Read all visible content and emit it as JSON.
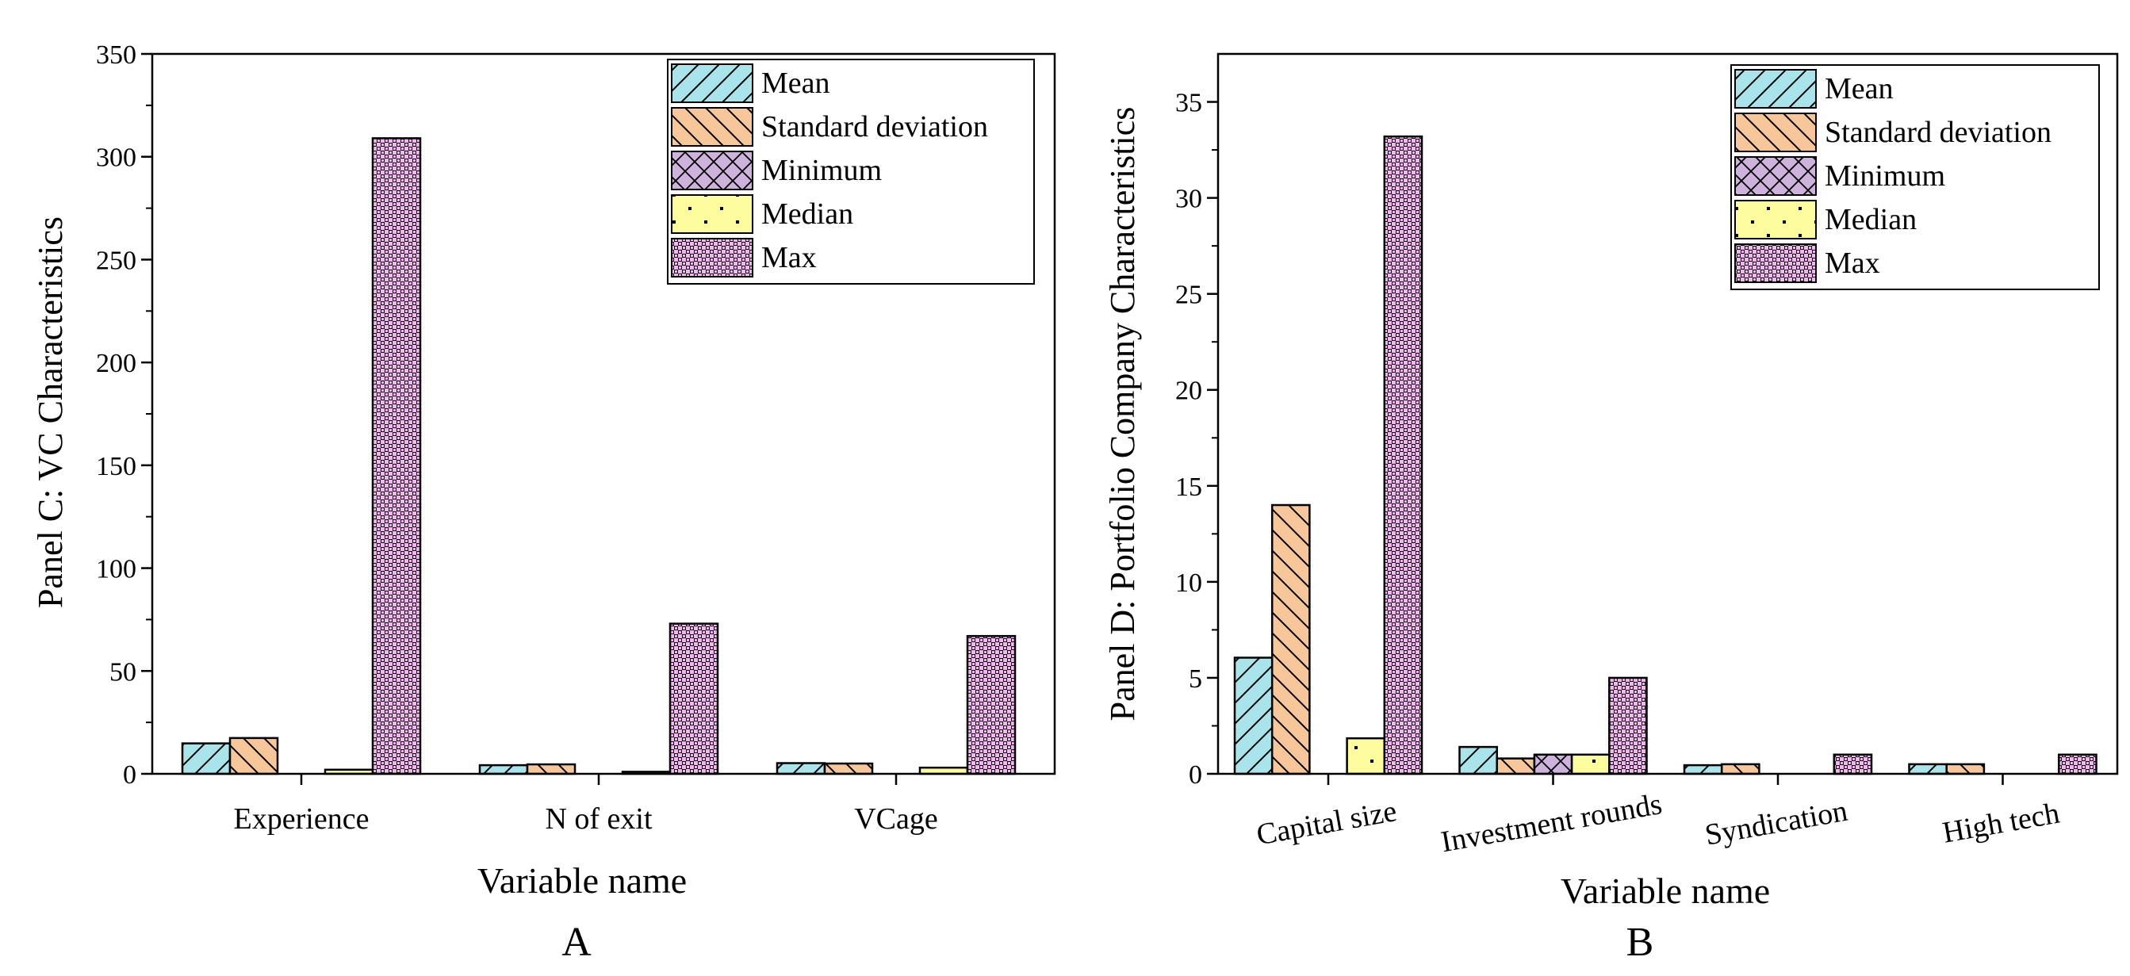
{
  "series_names": [
    "Mean",
    "Standard deviation",
    "Minimum",
    "Median",
    "Max"
  ],
  "colors": {
    "mean": "#a9e4ea",
    "sd": "#f7c79a",
    "min": "#cdb3dc",
    "median": "#fdfd9e",
    "max": "#f7b4f2"
  },
  "chart_data": [
    {
      "type": "bar",
      "panel_letter": "A",
      "ylabel": "Panel C: VC Characteristics",
      "xlabel": "Variable name",
      "ylim": [
        0,
        350
      ],
      "yticks": [
        0,
        50,
        100,
        150,
        200,
        250,
        300,
        350
      ],
      "categories": [
        "Experience",
        "N of exit",
        "VCage"
      ],
      "legend_position": "top-right",
      "series": [
        {
          "name": "Mean",
          "values": [
            14.8,
            4.2,
            5.2
          ]
        },
        {
          "name": "Standard deviation",
          "values": [
            17.4,
            4.6,
            5.0
          ]
        },
        {
          "name": "Minimum",
          "values": [
            0,
            0,
            0
          ]
        },
        {
          "name": "Median",
          "values": [
            2,
            1,
            3
          ]
        },
        {
          "name": "Max",
          "values": [
            309,
            73,
            67
          ]
        }
      ]
    },
    {
      "type": "bar",
      "panel_letter": "B",
      "ylabel": "Panel D: Portfolio Company Characteristics",
      "xlabel": "Variable name",
      "ylim": [
        0,
        37.5
      ],
      "yticks": [
        0,
        5,
        10,
        15,
        20,
        25,
        30,
        35
      ],
      "categories": [
        "Capital size",
        "Investment rounds",
        "Syndication",
        "High tech"
      ],
      "legend_position": "top-right",
      "series": [
        {
          "name": "Mean",
          "values": [
            6.05,
            1.4,
            0.45,
            0.5
          ]
        },
        {
          "name": "Standard deviation",
          "values": [
            14.0,
            0.8,
            0.5,
            0.5
          ]
        },
        {
          "name": "Minimum",
          "values": [
            0,
            1.0,
            0,
            0
          ]
        },
        {
          "name": "Median",
          "values": [
            1.85,
            1.0,
            0,
            0
          ]
        },
        {
          "name": "Max",
          "values": [
            33.2,
            5.0,
            1.0,
            1.0
          ]
        }
      ]
    }
  ]
}
